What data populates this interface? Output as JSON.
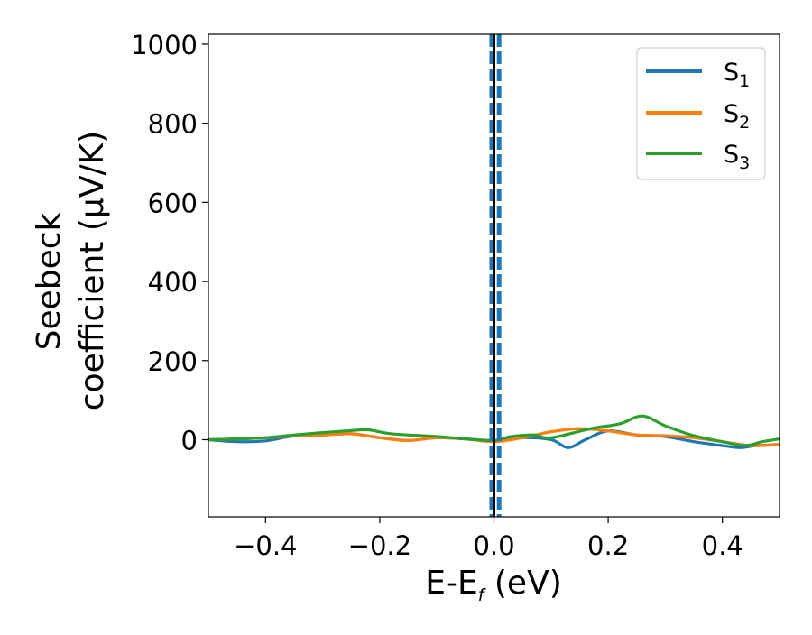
{
  "chart_data": {
    "type": "line",
    "xlabel": "E-E",
    "xlabel_sub": "f",
    "xlabel_unit": " (eV)",
    "ylabel_line1": "Seebeck",
    "ylabel_line2": "coefficient  (μV/K)",
    "xlim": [
      -0.5,
      0.5
    ],
    "ylim": [
      -195,
      1025
    ],
    "xticks": [
      -0.4,
      -0.2,
      0.0,
      0.2,
      0.4
    ],
    "xtick_labels": [
      "−0.4",
      "−0.2",
      "0.0",
      "0.2",
      "0.4"
    ],
    "yticks": [
      0,
      200,
      400,
      600,
      800,
      1000
    ],
    "ytick_labels": [
      "0",
      "200",
      "400",
      "600",
      "800",
      "1000"
    ],
    "grid": false,
    "legend_position": "top-right",
    "vertical_lines": [
      {
        "x": 0.0,
        "style": "solid",
        "color": "#000000"
      },
      {
        "x": -0.004,
        "style": "dashed",
        "color": "#1f77b4"
      },
      {
        "x": 0.009,
        "style": "dashed",
        "color": "#1f77b4"
      }
    ],
    "series": [
      {
        "name": "S",
        "name_sub": "1",
        "color": "#1f77b4",
        "x": [
          -0.5,
          -0.45,
          -0.4,
          -0.35,
          -0.3,
          -0.25,
          -0.2,
          -0.15,
          -0.1,
          -0.05,
          0.0,
          0.05,
          0.1,
          0.13,
          0.16,
          0.2,
          0.25,
          0.3,
          0.35,
          0.4,
          0.43,
          0.46,
          0.5
        ],
        "y": [
          0,
          -5,
          -3,
          10,
          12,
          15,
          5,
          -2,
          5,
          2,
          -2,
          5,
          0,
          -20,
          0,
          22,
          12,
          8,
          -5,
          -15,
          -20,
          -15,
          -12
        ]
      },
      {
        "name": "S",
        "name_sub": "2",
        "color": "#ff7f0e",
        "x": [
          -0.5,
          -0.45,
          -0.4,
          -0.35,
          -0.3,
          -0.25,
          -0.2,
          -0.15,
          -0.1,
          -0.05,
          0.0,
          0.05,
          0.1,
          0.15,
          0.2,
          0.25,
          0.3,
          0.35,
          0.4,
          0.45,
          0.5
        ],
        "y": [
          0,
          2,
          5,
          10,
          12,
          15,
          5,
          -2,
          5,
          2,
          -5,
          5,
          20,
          28,
          22,
          12,
          10,
          5,
          -5,
          -15,
          -12
        ]
      },
      {
        "name": "S",
        "name_sub": "3",
        "color": "#2ca02c",
        "x": [
          -0.5,
          -0.45,
          -0.4,
          -0.35,
          -0.3,
          -0.25,
          -0.22,
          -0.18,
          -0.1,
          -0.05,
          0.0,
          0.03,
          0.07,
          0.1,
          0.17,
          0.22,
          0.26,
          0.3,
          0.35,
          0.4,
          0.44,
          0.47,
          0.5
        ],
        "y": [
          0,
          2,
          5,
          12,
          18,
          23,
          25,
          15,
          8,
          2,
          -2,
          8,
          12,
          5,
          28,
          40,
          60,
          35,
          10,
          -5,
          -15,
          -5,
          2
        ]
      }
    ]
  }
}
